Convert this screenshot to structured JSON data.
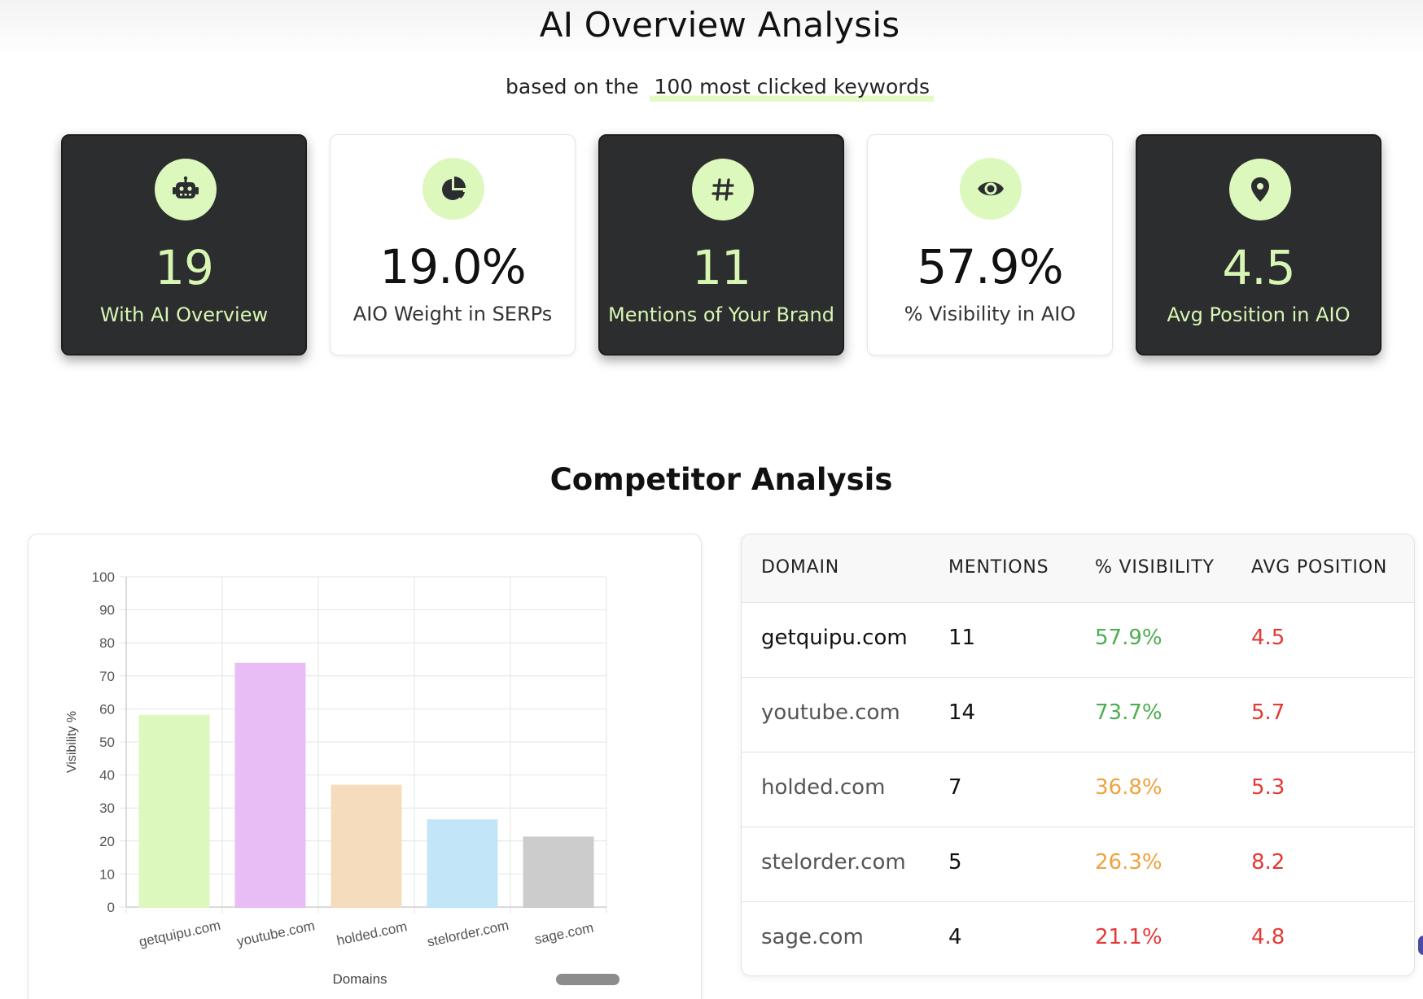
{
  "header": {
    "title": "AI Overview Analysis",
    "subtitle_prefix": "based on the",
    "subtitle_highlight": "100 most clicked keywords"
  },
  "colors": {
    "accent_green": "#dcf8bd",
    "dark_card": "#2c2d2e",
    "good": "#4caf50",
    "warn": "#f0a23c",
    "bad": "#e53935"
  },
  "stats": [
    {
      "icon": "robot-icon",
      "value": "19",
      "label": "With AI Overview",
      "theme": "dark"
    },
    {
      "icon": "pie-chart-icon",
      "value": "19.0%",
      "label": "AIO Weight in SERPs",
      "theme": "light"
    },
    {
      "icon": "hashtag-icon",
      "value": "11",
      "label": "Mentions of Your Brand",
      "theme": "dark"
    },
    {
      "icon": "eye-icon",
      "value": "57.9%",
      "label": "% Visibility in AIO",
      "theme": "light"
    },
    {
      "icon": "map-pin-icon",
      "value": "4.5",
      "label": "Avg Position in AIO",
      "theme": "dark"
    }
  ],
  "competitor": {
    "title": "Competitor Analysis",
    "table": {
      "headers": [
        "DOMAIN",
        "MENTIONS",
        "% VISIBILITY",
        "AVG POSITION"
      ],
      "rows": [
        {
          "domain": "getquipu.com",
          "mentions": "11",
          "visibility": "57.9%",
          "position": "4.5",
          "vis_status": "green"
        },
        {
          "domain": "youtube.com",
          "mentions": "14",
          "visibility": "73.7%",
          "position": "5.7",
          "vis_status": "green"
        },
        {
          "domain": "holded.com",
          "mentions": "7",
          "visibility": "36.8%",
          "position": "5.3",
          "vis_status": "orange"
        },
        {
          "domain": "stelorder.com",
          "mentions": "5",
          "visibility": "26.3%",
          "position": "8.2",
          "vis_status": "orange"
        },
        {
          "domain": "sage.com",
          "mentions": "4",
          "visibility": "21.1%",
          "position": "4.8",
          "vis_status": "red"
        }
      ]
    }
  },
  "chart_data": {
    "type": "bar",
    "categories": [
      "getquipu.com",
      "youtube.com",
      "holded.com",
      "stelorder.com",
      "sage.com"
    ],
    "values": [
      57.9,
      73.7,
      36.8,
      26.3,
      21.1
    ],
    "bar_colors": [
      "#dcf8bd",
      "#e8bdf6",
      "#f5dcbd",
      "#c2e5f8",
      "#cccccc"
    ],
    "xlabel": "Domains",
    "ylabel": "Visibility %",
    "ylim": [
      0,
      100
    ],
    "yticks": [
      0,
      10,
      20,
      30,
      40,
      50,
      60,
      70,
      80,
      90,
      100
    ],
    "grid": true
  }
}
